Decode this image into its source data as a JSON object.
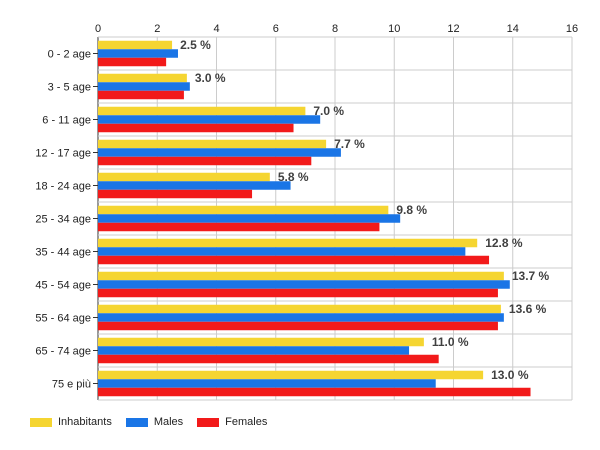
{
  "chart_data": {
    "type": "bar",
    "orientation": "horizontal",
    "categories": [
      "0 - 2 age",
      "3 - 5 age",
      "6 - 11 age",
      "12 - 17 age",
      "18 - 24 age",
      "25 - 34 age",
      "35 - 44 age",
      "45 - 54 age",
      "55 - 64 age",
      "65 - 74 age",
      "75 e più"
    ],
    "series": [
      {
        "name": "Inhabitants",
        "color": "#f5d531",
        "values": [
          2.5,
          3.0,
          7.0,
          7.7,
          5.8,
          9.8,
          12.8,
          13.7,
          13.6,
          11.0,
          13.0
        ]
      },
      {
        "name": "Males",
        "color": "#1a75e6",
        "values": [
          2.7,
          3.1,
          7.5,
          8.2,
          6.5,
          10.2,
          12.4,
          13.9,
          13.7,
          10.5,
          11.4
        ]
      },
      {
        "name": "Females",
        "color": "#f21a1a",
        "values": [
          2.3,
          2.9,
          6.6,
          7.2,
          5.2,
          9.5,
          13.2,
          13.5,
          13.5,
          11.5,
          14.6
        ]
      }
    ],
    "data_labels": [
      "2.5 %",
      "3.0 %",
      "7.0 %",
      "7.7 %",
      "5.8 %",
      "9.8 %",
      "12.8 %",
      "13.7 %",
      "13.6 %",
      "11.0 %",
      "13.0 %"
    ],
    "x_ticks": [
      "0",
      "2",
      "4",
      "6",
      "8",
      "10",
      "12",
      "14",
      "16"
    ],
    "xlim": [
      0,
      16
    ],
    "grid": true,
    "legend_position": "bottom-left",
    "title": "",
    "xlabel": "",
    "ylabel": ""
  }
}
